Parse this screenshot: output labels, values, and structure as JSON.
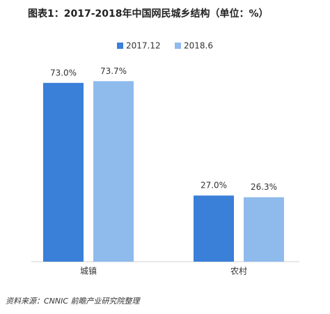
{
  "chart_data": {
    "type": "bar",
    "title": "图表1：2017-2018年中国网民城乡结构（单位：%）",
    "categories": [
      "城镇",
      "农村"
    ],
    "series": [
      {
        "name": "2017.12",
        "color": "#3a7fd8",
        "values": [
          73.0,
          27.0
        ],
        "value_labels": [
          "73.0%",
          "27.0%"
        ]
      },
      {
        "name": "2018.6",
        "color": "#8fbaec",
        "values": [
          73.7,
          26.3
        ],
        "value_labels": [
          "73.7%",
          "26.3%"
        ]
      }
    ],
    "source": "资料来源：CNNIC 前瞻产业研究院整理"
  }
}
